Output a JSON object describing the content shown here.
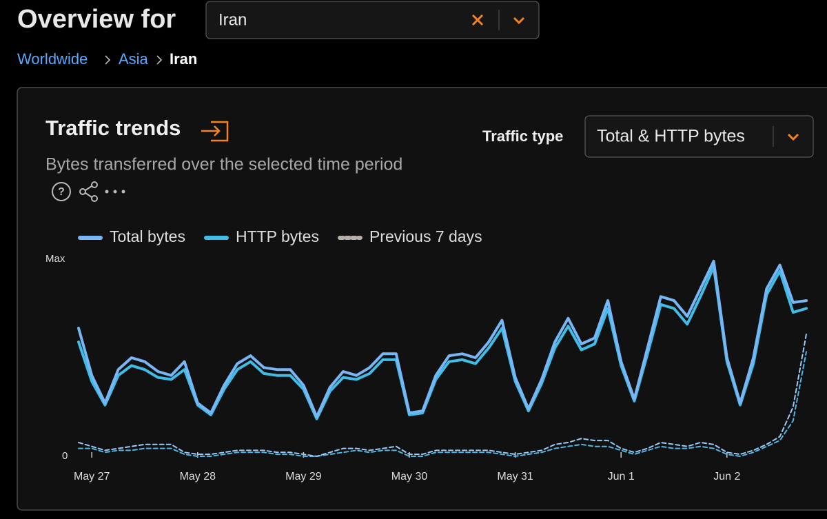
{
  "header": {
    "title": "Overview for",
    "select": "Iran"
  },
  "breadcrumb": [
    "Worldwide",
    "Asia",
    "Iran"
  ],
  "controls": {
    "label": "Traffic type",
    "value": "Total & HTTP bytes"
  },
  "chart_data": {
    "type": "line",
    "title": "Traffic trends",
    "subtitle": "Bytes transferred over the selected time period",
    "categories": [
      null,
      "May 27",
      null,
      null,
      null,
      null,
      null,
      null,
      null,
      "May 28",
      null,
      null,
      null,
      null,
      null,
      null,
      null,
      "May 29",
      null,
      null,
      null,
      null,
      null,
      null,
      null,
      "May 30",
      null,
      null,
      null,
      null,
      null,
      null,
      null,
      "May 31",
      null,
      null,
      null,
      null,
      null,
      null,
      null,
      "Jun 1",
      null,
      null,
      null,
      null,
      null,
      null,
      null,
      "Jun 2",
      null,
      null,
      null,
      null,
      null,
      null
    ],
    "ylim": [
      0,
      100
    ],
    "yticks": [
      0,
      {
        "value": 100,
        "label": "Max"
      }
    ],
    "series": [
      {
        "name": "Total bytes",
        "color": "#78b6f6",
        "values": [
          65,
          41,
          27,
          44,
          50,
          48,
          43,
          41,
          48,
          27,
          22,
          36,
          47,
          51,
          45,
          44,
          44,
          36,
          20,
          35,
          43,
          41,
          45,
          52,
          52,
          22,
          23,
          41,
          51,
          52,
          50,
          58,
          69,
          40,
          24,
          39,
          58,
          70,
          57,
          60,
          79,
          48,
          29,
          55,
          81,
          79,
          71,
          85,
          99,
          50,
          27,
          50,
          85,
          97,
          78,
          79
        ]
      },
      {
        "name": "HTTP bytes",
        "color": "#3fbde6",
        "values": [
          58,
          38,
          26,
          41,
          46,
          44,
          40,
          39,
          44,
          26,
          21,
          34,
          44,
          48,
          42,
          41,
          41,
          34,
          19,
          33,
          40,
          39,
          42,
          49,
          49,
          21,
          22,
          39,
          48,
          49,
          47,
          55,
          65,
          38,
          23,
          37,
          55,
          66,
          54,
          57,
          75,
          46,
          28,
          52,
          77,
          75,
          67,
          81,
          96,
          48,
          26,
          47,
          82,
          94,
          73,
          75
        ]
      },
      {
        "name": "Previous 7 days",
        "color": "#9cc9f5",
        "dashed": true,
        "values": [
          7,
          5,
          3,
          4,
          5,
          6,
          6,
          6,
          2,
          1,
          1,
          2,
          3,
          3,
          3,
          2,
          2,
          1,
          0,
          2,
          4,
          4,
          3,
          4,
          5,
          1,
          1,
          3,
          3,
          3,
          3,
          3,
          2,
          1,
          2,
          3,
          6,
          7,
          9,
          8,
          8,
          4,
          2,
          4,
          7,
          6,
          5,
          7,
          6,
          2,
          1,
          3,
          6,
          10,
          25,
          62
        ]
      },
      {
        "color": "#4fb8e6",
        "dashed": true,
        "values": [
          4,
          4,
          2,
          3,
          3,
          4,
          4,
          4,
          1,
          0,
          0,
          1,
          2,
          2,
          2,
          1,
          1,
          0,
          0,
          1,
          2,
          3,
          2,
          3,
          3,
          0,
          0,
          2,
          2,
          2,
          2,
          2,
          1,
          0,
          1,
          2,
          4,
          5,
          6,
          5,
          5,
          3,
          1,
          3,
          5,
          4,
          4,
          5,
          4,
          1,
          0,
          2,
          5,
          8,
          18,
          53
        ]
      }
    ]
  }
}
